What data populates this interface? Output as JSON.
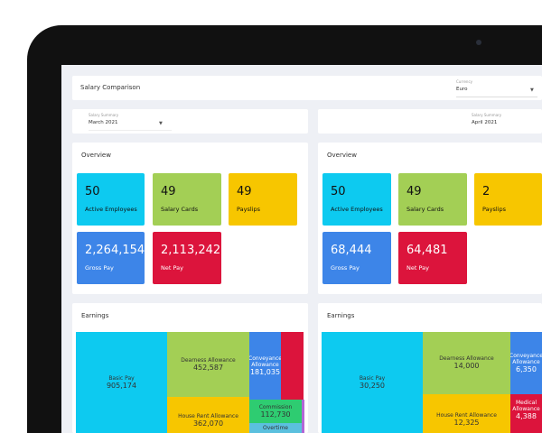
{
  "header": {
    "title": "Salary Comparison",
    "currency_label": "Currency",
    "currency_value": "Euro"
  },
  "left": {
    "summary_label": "Salary Summary",
    "summary_value": "March 2021",
    "overview_title": "Overview",
    "cards": [
      {
        "value": "50",
        "label": "Active Employees",
        "color": "#0dcaf0"
      },
      {
        "value": "49",
        "label": "Salary Cards",
        "color": "#a3cf55"
      },
      {
        "value": "49",
        "label": "Payslips",
        "color": "#f7c600"
      },
      {
        "value": "2,264,154",
        "label": "Gross Pay",
        "color": "#3d85e8"
      },
      {
        "value": "2,113,242",
        "label": "Net Pay",
        "color": "#dc143c"
      }
    ],
    "earnings_title": "Earnings",
    "treemap": [
      {
        "label": "Basic Pay",
        "value": "905,174"
      },
      {
        "label": "Dearness Allowance",
        "value": "452,587"
      },
      {
        "label": "House Rent Allowance",
        "value": "362,070"
      },
      {
        "label": "Conveyance Allowance",
        "value": "181,035"
      },
      {
        "label": "",
        "value": ""
      },
      {
        "label": "Commission",
        "value": "112,730"
      },
      {
        "label": "Overtime",
        "value": ""
      }
    ]
  },
  "right": {
    "summary_label": "Salary Summary",
    "summary_value": "April 2021",
    "overview_title": "Overview",
    "cards": [
      {
        "value": "50",
        "label": "Active Employees"
      },
      {
        "value": "49",
        "label": "Salary Cards"
      },
      {
        "value": "2",
        "label": "Payslips"
      },
      {
        "value": "68,444",
        "label": "Gross Pay"
      },
      {
        "value": "64,481",
        "label": "Net Pay"
      }
    ],
    "earnings_title": "Earnings",
    "treemap": [
      {
        "label": "Basic Pay",
        "value": "30,250"
      },
      {
        "label": "Dearness Allowance",
        "value": "14,000"
      },
      {
        "label": "House Rent Allowance",
        "value": "12,325"
      },
      {
        "label": "Conveyance Allowance",
        "value": "6,350"
      },
      {
        "label": "Medical Allowance",
        "value": "4,388"
      }
    ]
  }
}
